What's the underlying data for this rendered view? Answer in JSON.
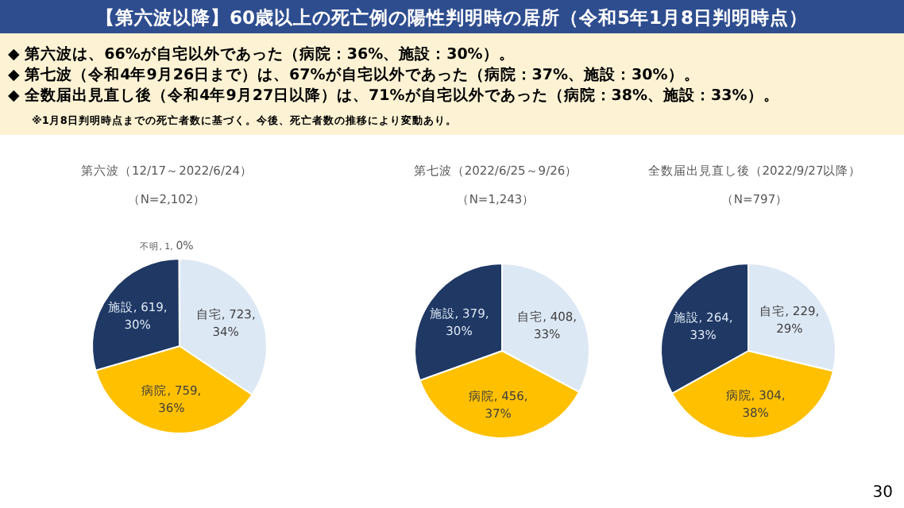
{
  "chart_data": [
    {
      "type": "other",
      "title": "【第六波以降】60歳以上の死亡例の陽性判明時の居所（令和5年1月8日判明時点）",
      "annotations": [
        "◆ 第六波は、66%が自宅以外であった（病院：36%、施設：30%）。",
        "◆ 第七波（令和4年9月26日まで）は、67%が自宅以外であった（病院：37%、施設：30%）。",
        "◆ 全数届出見直し後（令和4年9月27日以降）は、71%が自宅以外であった（病院：38%、施設：33%）。",
        "※1月8日判明時点までの死亡者数に基づく。今後、死亡者数の推移により変動あり。",
        "30"
      ]
    },
    {
      "type": "pie",
      "title": "第六波（12/17～2022/6/24）",
      "subtitle": "（N=2,102）",
      "categories": [
        "自宅",
        "病院",
        "施設",
        "不明"
      ],
      "values": [
        723,
        759,
        619,
        1
      ],
      "value_labels": [
        "723, 34%",
        "759, 36%",
        "619, 30%",
        "1, 0%"
      ],
      "colors": [
        "#dde8f5",
        "#ffc000",
        "#1f3864",
        "#a5a5a5"
      ]
    },
    {
      "type": "pie",
      "title": "第七波（2022/6/25～9/26）",
      "subtitle": "（N=1,243）",
      "categories": [
        "自宅",
        "病院",
        "施設"
      ],
      "values": [
        408,
        456,
        379
      ],
      "value_labels": [
        "408, 33%",
        "456, 37%",
        "379, 30%"
      ],
      "colors": [
        "#dde8f5",
        "#ffc000",
        "#1f3864"
      ]
    },
    {
      "type": "pie",
      "title": "全数届出見直し後（2022/9/27以降）",
      "subtitle": "（N=797）",
      "categories": [
        "自宅",
        "病院",
        "施設"
      ],
      "values": [
        229,
        304,
        264
      ],
      "value_labels": [
        "229, 29%",
        "304, 38%",
        "264, 33%"
      ],
      "colors": [
        "#dde8f5",
        "#ffc000",
        "#1f3864"
      ]
    }
  ]
}
